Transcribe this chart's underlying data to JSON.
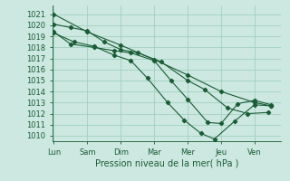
{
  "xlabel": "Pression niveau de la mer( hPa )",
  "bg_color": "#cce8e0",
  "grid_color": "#99ccbb",
  "line_color": "#1a5c35",
  "ylim": [
    1009.5,
    1021.8
  ],
  "yticks": [
    1010,
    1011,
    1012,
    1013,
    1014,
    1015,
    1016,
    1017,
    1018,
    1019,
    1020,
    1021
  ],
  "xtick_labels": [
    "Lun",
    "Sam",
    "Dim",
    "Mar",
    "Mer",
    "Jeu",
    "Ven"
  ],
  "xtick_positions": [
    0,
    1,
    2,
    3,
    4,
    5,
    6
  ],
  "xlim": [
    -0.05,
    6.8
  ],
  "line1_x": [
    0.0,
    1.0,
    2.0,
    3.0,
    4.0,
    5.0,
    6.0,
    6.5
  ],
  "line1_y": [
    1021.0,
    1019.4,
    1018.2,
    1016.9,
    1015.5,
    1014.0,
    1013.0,
    1012.7
  ],
  "line2_x": [
    0.0,
    0.5,
    1.0,
    1.5,
    2.0,
    2.5,
    3.2,
    4.0,
    4.5,
    5.2,
    5.8,
    6.4
  ],
  "line2_y": [
    1020.1,
    1019.8,
    1019.5,
    1018.5,
    1017.8,
    1017.5,
    1016.7,
    1015.0,
    1014.2,
    1012.5,
    1012.0,
    1012.1
  ],
  "line3_x": [
    0.0,
    0.5,
    1.2,
    1.8,
    2.3,
    3.0,
    3.5,
    4.0,
    4.6,
    5.0,
    5.5,
    6.0,
    6.5
  ],
  "line3_y": [
    1019.4,
    1018.3,
    1018.0,
    1017.7,
    1017.5,
    1016.8,
    1015.0,
    1013.3,
    1011.2,
    1011.1,
    1012.9,
    1013.2,
    1012.8
  ],
  "line4_x": [
    0.0,
    0.6,
    1.2,
    1.8,
    2.3,
    2.8,
    3.4,
    3.9,
    4.4,
    4.8,
    5.4,
    6.0,
    6.5
  ],
  "line4_y": [
    1019.3,
    1018.5,
    1018.1,
    1017.3,
    1016.8,
    1015.2,
    1013.0,
    1011.4,
    1010.2,
    1009.7,
    1011.3,
    1012.8,
    1012.7
  ]
}
